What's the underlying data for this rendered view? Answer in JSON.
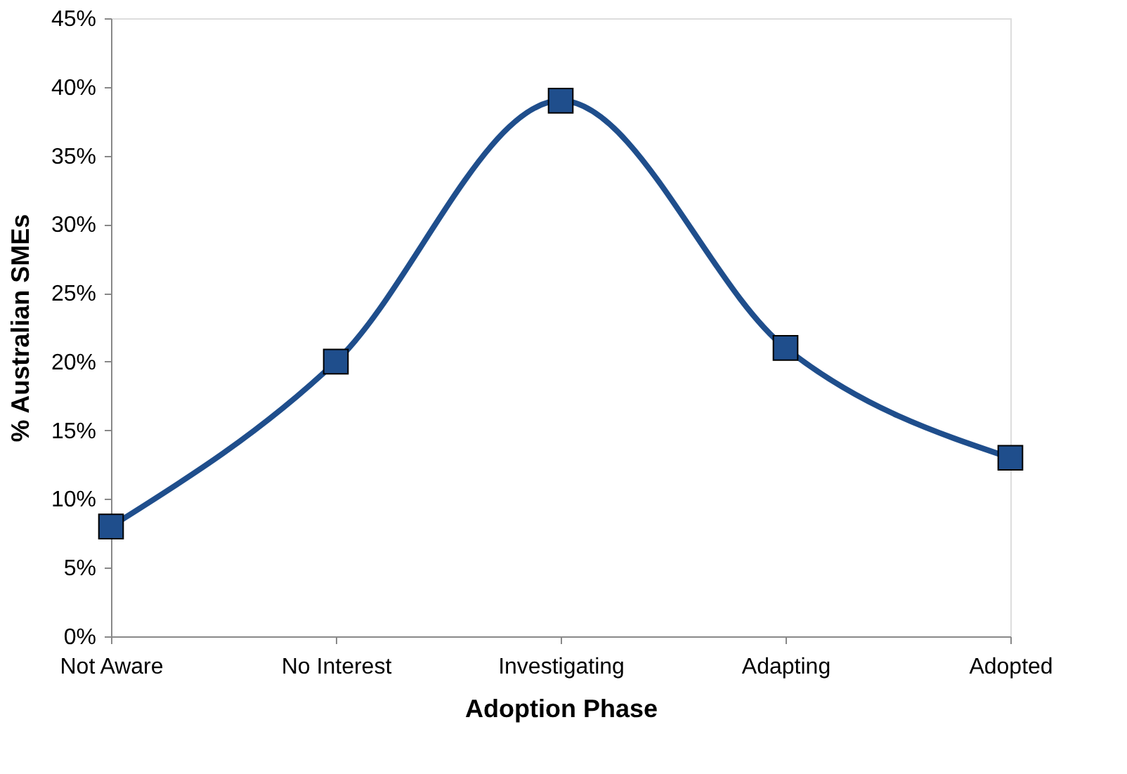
{
  "chart_data": {
    "type": "line",
    "xlabel": "Adoption Phase",
    "ylabel": "% Australian SMEs",
    "categories": [
      "Not Aware",
      "No Interest",
      "Investigating",
      "Adapting",
      "Adopted"
    ],
    "series": [
      {
        "color": "#1f4e8c",
        "values": [
          8,
          20,
          39,
          21,
          13
        ]
      }
    ],
    "ylim": [
      0,
      45
    ],
    "yticks": [
      {
        "value": 0,
        "label": "0%"
      },
      {
        "value": 5,
        "label": "5%"
      },
      {
        "value": 10,
        "label": "10%"
      },
      {
        "value": 15,
        "label": "15%"
      },
      {
        "value": 20,
        "label": "20%"
      },
      {
        "value": 25,
        "label": "25%"
      },
      {
        "value": 30,
        "label": "30%"
      },
      {
        "value": 35,
        "label": "35%"
      },
      {
        "value": 40,
        "label": "40%"
      },
      {
        "value": 45,
        "label": "45%"
      }
    ],
    "marker": "square",
    "line_style": "solid",
    "grid": false
  }
}
